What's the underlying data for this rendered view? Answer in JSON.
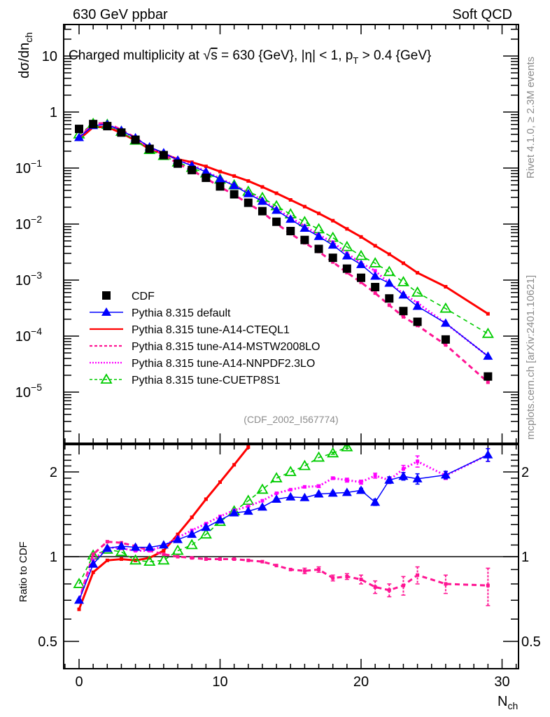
{
  "header": {
    "left_label": "630 GeV ppbar",
    "right_label": "Soft QCD"
  },
  "side_labels": {
    "rivet": "Rivet 4.1.0, ≥ 2.3M events",
    "mcplots": "mcplots.cern.ch [arXiv:2401.10621]"
  },
  "chart_data": [
    {
      "panel": "main",
      "type": "line",
      "title_parts": {
        "prefix": "Charged multiplicity at ",
        "sqrt": "√",
        "s": "s",
        "mid": " = 630 {GeV}, |η| < 1, p",
        "sub": "T",
        "suffix": " > 0.4 {GeV}"
      },
      "ylabel": {
        "main": "dσ/dn",
        "sub": "ch"
      },
      "yscale": "log",
      "ylim": [
        2e-06,
        40
      ],
      "xlim": [
        -1.1,
        31.2
      ],
      "ytick_labels": [
        {
          "value": 10,
          "label": "10"
        },
        {
          "value": 1,
          "label": "1"
        },
        {
          "value": 0.1,
          "label": "10",
          "exp": "−1"
        },
        {
          "value": 0.01,
          "label": "10",
          "exp": "−2"
        },
        {
          "value": 0.001,
          "label": "10",
          "exp": "−3"
        },
        {
          "value": 0.0001,
          "label": "10",
          "exp": "−4"
        },
        {
          "value": 1e-05,
          "label": "10",
          "exp": "−5"
        }
      ],
      "analysis_tag": "(CDF_2002_I567774)",
      "legend_position": "lower-left",
      "x": [
        0,
        1,
        2,
        3,
        4,
        5,
        6,
        7,
        8,
        9,
        10,
        11,
        12,
        13,
        14,
        15,
        16,
        17,
        18,
        19,
        20,
        21,
        22,
        23,
        24,
        26,
        29
      ],
      "series": [
        {
          "name": "CDF",
          "color": "#000000",
          "marker": "square",
          "line": "none",
          "values": [
            0.5,
            0.61,
            0.56,
            0.43,
            0.32,
            0.22,
            0.17,
            0.12,
            0.092,
            0.067,
            0.047,
            0.034,
            0.024,
            0.017,
            0.011,
            0.0075,
            0.0052,
            0.0036,
            0.0025,
            0.0016,
            0.0011,
            0.00075,
            0.00047,
            0.00028,
            0.00018,
            8.7e-05,
            1.9e-05
          ]
        },
        {
          "name": "Pythia 8.315 default",
          "color": "#0000ff",
          "marker": "triangle-filled",
          "line": "solid",
          "values": [
            0.35,
            0.573,
            0.599,
            0.469,
            0.346,
            0.238,
            0.187,
            0.138,
            0.11,
            0.0851,
            0.0635,
            0.0486,
            0.0348,
            0.0255,
            0.0176,
            0.0122,
            0.00842,
            0.00601,
            0.0042,
            0.0027,
            0.00189,
            0.00117,
            0.000879,
            0.00054,
            0.00034,
            0.00017,
            4.37e-05
          ]
        },
        {
          "name": "Pythia 8.315 tune-A14-CTEQL1",
          "color": "#ff0000",
          "marker": "none",
          "line": "solid-thick",
          "values": [
            0.325,
            0.537,
            0.543,
            0.421,
            0.31,
            0.218,
            0.179,
            0.144,
            0.127,
            0.107,
            0.0865,
            0.0721,
            0.0588,
            0.046,
            0.0355,
            0.027,
            0.0205,
            0.0155,
            0.0115,
            0.0082,
            0.0059,
            0.0041,
            0.0029,
            0.002,
            0.00135,
            0.00076,
            0.00025
          ]
        },
        {
          "name": "Pythia 8.315 tune-A14-MSTW2008LO",
          "color": "#ff1493",
          "marker": "none",
          "line": "dashed-thick",
          "values": [
            0.35,
            0.622,
            0.633,
            0.482,
            0.349,
            0.231,
            0.173,
            0.12,
            0.0911,
            0.0657,
            0.0461,
            0.0333,
            0.0233,
            0.0163,
            0.0102,
            0.00675,
            0.00463,
            0.00324,
            0.0021,
            0.00136,
            0.000913,
            0.000585,
            0.000357,
            0.000221,
            0.000155,
            6.96e-05,
            1.5e-05
          ]
        },
        {
          "name": "Pythia 8.315 tune-A14-NNPDF2.3LO",
          "color": "#ff00ff",
          "marker": "none",
          "line": "dotted",
          "values": [
            0.35,
            0.592,
            0.605,
            0.46,
            0.336,
            0.231,
            0.185,
            0.14,
            0.114,
            0.0878,
            0.0653,
            0.0496,
            0.0362,
            0.0269,
            0.0185,
            0.013,
            0.0092,
            0.00641,
            0.00475,
            0.00299,
            0.00202,
            0.00146,
            0.000879,
            0.000574,
            0.000392,
            0.000169,
            4.37e-05
          ]
        },
        {
          "name": "Pythia 8.315 tune-CUETP8S1",
          "color": "#00cc00",
          "marker": "triangle-open",
          "line": "dashed",
          "values": [
            0.4,
            0.616,
            0.594,
            0.447,
            0.31,
            0.211,
            0.165,
            0.126,
            0.101,
            0.0804,
            0.0625,
            0.0493,
            0.0379,
            0.0294,
            0.0209,
            0.015,
            0.0109,
            0.0081,
            0.0057,
            0.0039,
            0.0027,
            0.002,
            0.0014,
            0.00092,
            0.0006,
            0.00031,
            0.00011
          ]
        }
      ]
    },
    {
      "panel": "ratio",
      "type": "line",
      "ylabel": "Ratio to CDF",
      "xlabel": {
        "main": "N",
        "sub": "ch"
      },
      "yscale": "log",
      "ylim": [
        0.42,
        2.35
      ],
      "xlim": [
        -1.1,
        31.2
      ],
      "ytick_labels": [
        {
          "value": 2,
          "label": "2"
        },
        {
          "value": 1,
          "label": "1"
        },
        {
          "value": 0.5,
          "label": "0.5"
        }
      ],
      "xtick_labels": [
        {
          "value": 0,
          "label": "0"
        },
        {
          "value": 10,
          "label": "10"
        },
        {
          "value": 20,
          "label": "20"
        },
        {
          "value": 30,
          "label": "30"
        }
      ],
      "reference_line": 1,
      "x": [
        0,
        1,
        2,
        3,
        4,
        5,
        6,
        7,
        8,
        9,
        10,
        11,
        12,
        13,
        14,
        15,
        16,
        17,
        18,
        19,
        20,
        21,
        22,
        23,
        24,
        26,
        29
      ],
      "series": [
        {
          "name": "Pythia 8.315 default",
          "color": "#0000ff",
          "values": [
            0.7,
            0.94,
            1.07,
            1.09,
            1.08,
            1.08,
            1.1,
            1.15,
            1.2,
            1.27,
            1.35,
            1.43,
            1.45,
            1.5,
            1.6,
            1.63,
            1.62,
            1.67,
            1.68,
            1.69,
            1.72,
            1.56,
            1.87,
            1.93,
            1.89,
            1.95,
            2.3
          ],
          "errors": [
            0.01,
            0.01,
            0.01,
            0.01,
            0.01,
            0.01,
            0.01,
            0.01,
            0.01,
            0.01,
            0.01,
            0.01,
            0.01,
            0.01,
            0.01,
            0.01,
            0.01,
            0.01,
            0.02,
            0.02,
            0.03,
            0.04,
            0.05,
            0.06,
            0.08,
            0.06,
            0.12
          ]
        },
        {
          "name": "Pythia 8.315 tune-A14-CTEQL1",
          "color": "#ff0000",
          "values": [
            0.65,
            0.88,
            0.97,
            0.98,
            0.97,
            0.99,
            1.05,
            1.2,
            1.38,
            1.6,
            1.84,
            2.12,
            2.45,
            null,
            null,
            null,
            null,
            null,
            null,
            null,
            null,
            null,
            null,
            null,
            null,
            null,
            null
          ],
          "errors": [
            0.01,
            0.01,
            0.01,
            0.01,
            0.01,
            0.01,
            0.01,
            0.01,
            0.01,
            0.01,
            0.01,
            0.01,
            0.01,
            null,
            null,
            null,
            null,
            null,
            null,
            null,
            null,
            null,
            null,
            null,
            null,
            null,
            null
          ]
        },
        {
          "name": "Pythia 8.315 tune-A14-MSTW2008LO",
          "color": "#ff1493",
          "values": [
            0.7,
            1.02,
            1.13,
            1.12,
            1.09,
            1.05,
            1.02,
            1.0,
            0.99,
            0.98,
            0.98,
            0.98,
            0.97,
            0.96,
            0.93,
            0.9,
            0.89,
            0.9,
            0.84,
            0.85,
            0.83,
            0.78,
            0.76,
            0.79,
            0.86,
            0.8,
            0.79
          ],
          "errors": [
            0.01,
            0.01,
            0.01,
            0.01,
            0.01,
            0.01,
            0.01,
            0.01,
            0.01,
            0.01,
            0.01,
            0.01,
            0.01,
            0.01,
            0.01,
            0.015,
            0.02,
            0.02,
            0.02,
            0.02,
            0.03,
            0.04,
            0.04,
            0.06,
            0.06,
            0.06,
            0.12
          ]
        },
        {
          "name": "Pythia 8.315 tune-A14-NNPDF2.3LO",
          "color": "#ff00ff",
          "values": [
            0.7,
            0.97,
            1.08,
            1.07,
            1.05,
            1.05,
            1.09,
            1.17,
            1.24,
            1.31,
            1.39,
            1.46,
            1.51,
            1.58,
            1.68,
            1.73,
            1.77,
            1.78,
            1.9,
            1.87,
            1.84,
            1.94,
            1.87,
            2.05,
            2.18,
            1.94,
            2.3
          ],
          "errors": [
            0.01,
            0.01,
            0.01,
            0.01,
            0.01,
            0.01,
            0.01,
            0.01,
            0.01,
            0.01,
            0.01,
            0.01,
            0.01,
            0.01,
            0.01,
            0.01,
            0.01,
            0.02,
            0.02,
            0.03,
            0.03,
            0.04,
            0.05,
            0.06,
            0.1,
            0.06,
            0.12
          ]
        },
        {
          "name": "Pythia 8.315 tune-CUETP8S1",
          "color": "#00cc00",
          "values": [
            0.8,
            1.01,
            1.06,
            1.04,
            0.97,
            0.96,
            0.97,
            1.05,
            1.1,
            1.2,
            1.33,
            1.45,
            1.58,
            1.73,
            1.9,
            2.0,
            2.1,
            2.25,
            2.33,
            2.45,
            null,
            null,
            null,
            null,
            null,
            null,
            null
          ],
          "errors": [
            0.01,
            0.01,
            0.01,
            0.01,
            0.01,
            0.01,
            0.01,
            0.01,
            0.01,
            0.01,
            0.01,
            0.01,
            0.01,
            0.01,
            0.01,
            0.01,
            0.01,
            0.01,
            0.02,
            0.02,
            null,
            null,
            null,
            null,
            null,
            null,
            null
          ]
        }
      ]
    }
  ]
}
